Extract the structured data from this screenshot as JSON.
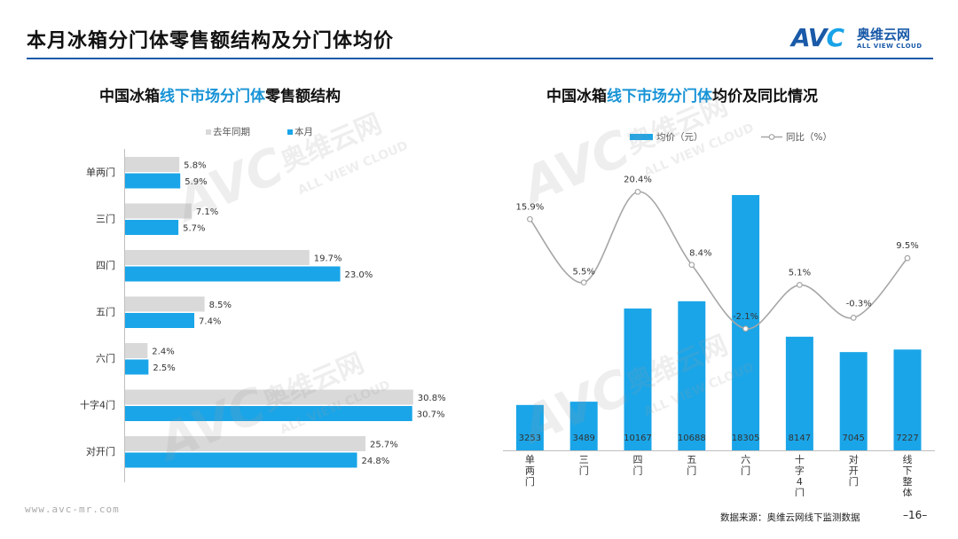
{
  "page": {
    "title": "本月冰箱分门体零售额结构及分门体均价",
    "logo_cn": "奥维云网",
    "logo_en": "ALL VIEW CLOUD",
    "logo_mark": "AVC",
    "watermark_cn": "奥维云网",
    "watermark_en": "ALL VIEW CLOUD",
    "site_url": "www.avc-mr.com",
    "source_note": "数据来源：奥维云网线下监测数据",
    "page_number": "–16–"
  },
  "colors": {
    "accent": "#1aa5e8",
    "gray": "#d9d9d9",
    "line": "#a6a6a6",
    "brand": "#1a5aa8",
    "title_highlight": "#1793d6"
  },
  "chart_data": [
    {
      "type": "bar",
      "orientation": "horizontal",
      "title_parts": [
        "中国冰箱",
        "线下市场分门体",
        "零售额结构"
      ],
      "categories": [
        "单两门",
        "三门",
        "四门",
        "五门",
        "六门",
        "十字4门",
        "对开门"
      ],
      "series": [
        {
          "name": "去年同期",
          "values": [
            5.8,
            7.1,
            19.7,
            8.5,
            2.4,
            30.8,
            25.7
          ],
          "labels": [
            "5.8%",
            "7.1%",
            "19.7%",
            "8.5%",
            "2.4%",
            "30.8%",
            "25.7%"
          ]
        },
        {
          "name": "本月",
          "values": [
            5.9,
            5.7,
            23.0,
            7.4,
            2.5,
            30.7,
            24.8
          ],
          "labels": [
            "5.9%",
            "5.7%",
            "23.0%",
            "7.4%",
            "2.5%",
            "30.7%",
            "24.8%"
          ]
        }
      ],
      "legend": "top"
    },
    {
      "type": "bar",
      "title_parts": [
        "中国冰箱",
        "线下市场分门体",
        "均价及同比情况"
      ],
      "categories": [
        "单两门",
        "三门",
        "四门",
        "五门",
        "六门",
        "十字4门",
        "对开门",
        "线下整体"
      ],
      "bars": {
        "name": "均价（元）",
        "values": [
          3253,
          3489,
          10167,
          10688,
          18305,
          8147,
          7045,
          7227
        ]
      },
      "line": {
        "name": "同比（%）",
        "values": [
          15.9,
          5.5,
          20.4,
          8.4,
          -2.1,
          5.1,
          -0.3,
          9.5
        ],
        "labels": [
          "15.9%",
          "5.5%",
          "20.4%",
          "8.4%",
          "-2.1%",
          "5.1%",
          "-0.3%",
          "9.5%"
        ]
      },
      "legend": "top"
    }
  ]
}
